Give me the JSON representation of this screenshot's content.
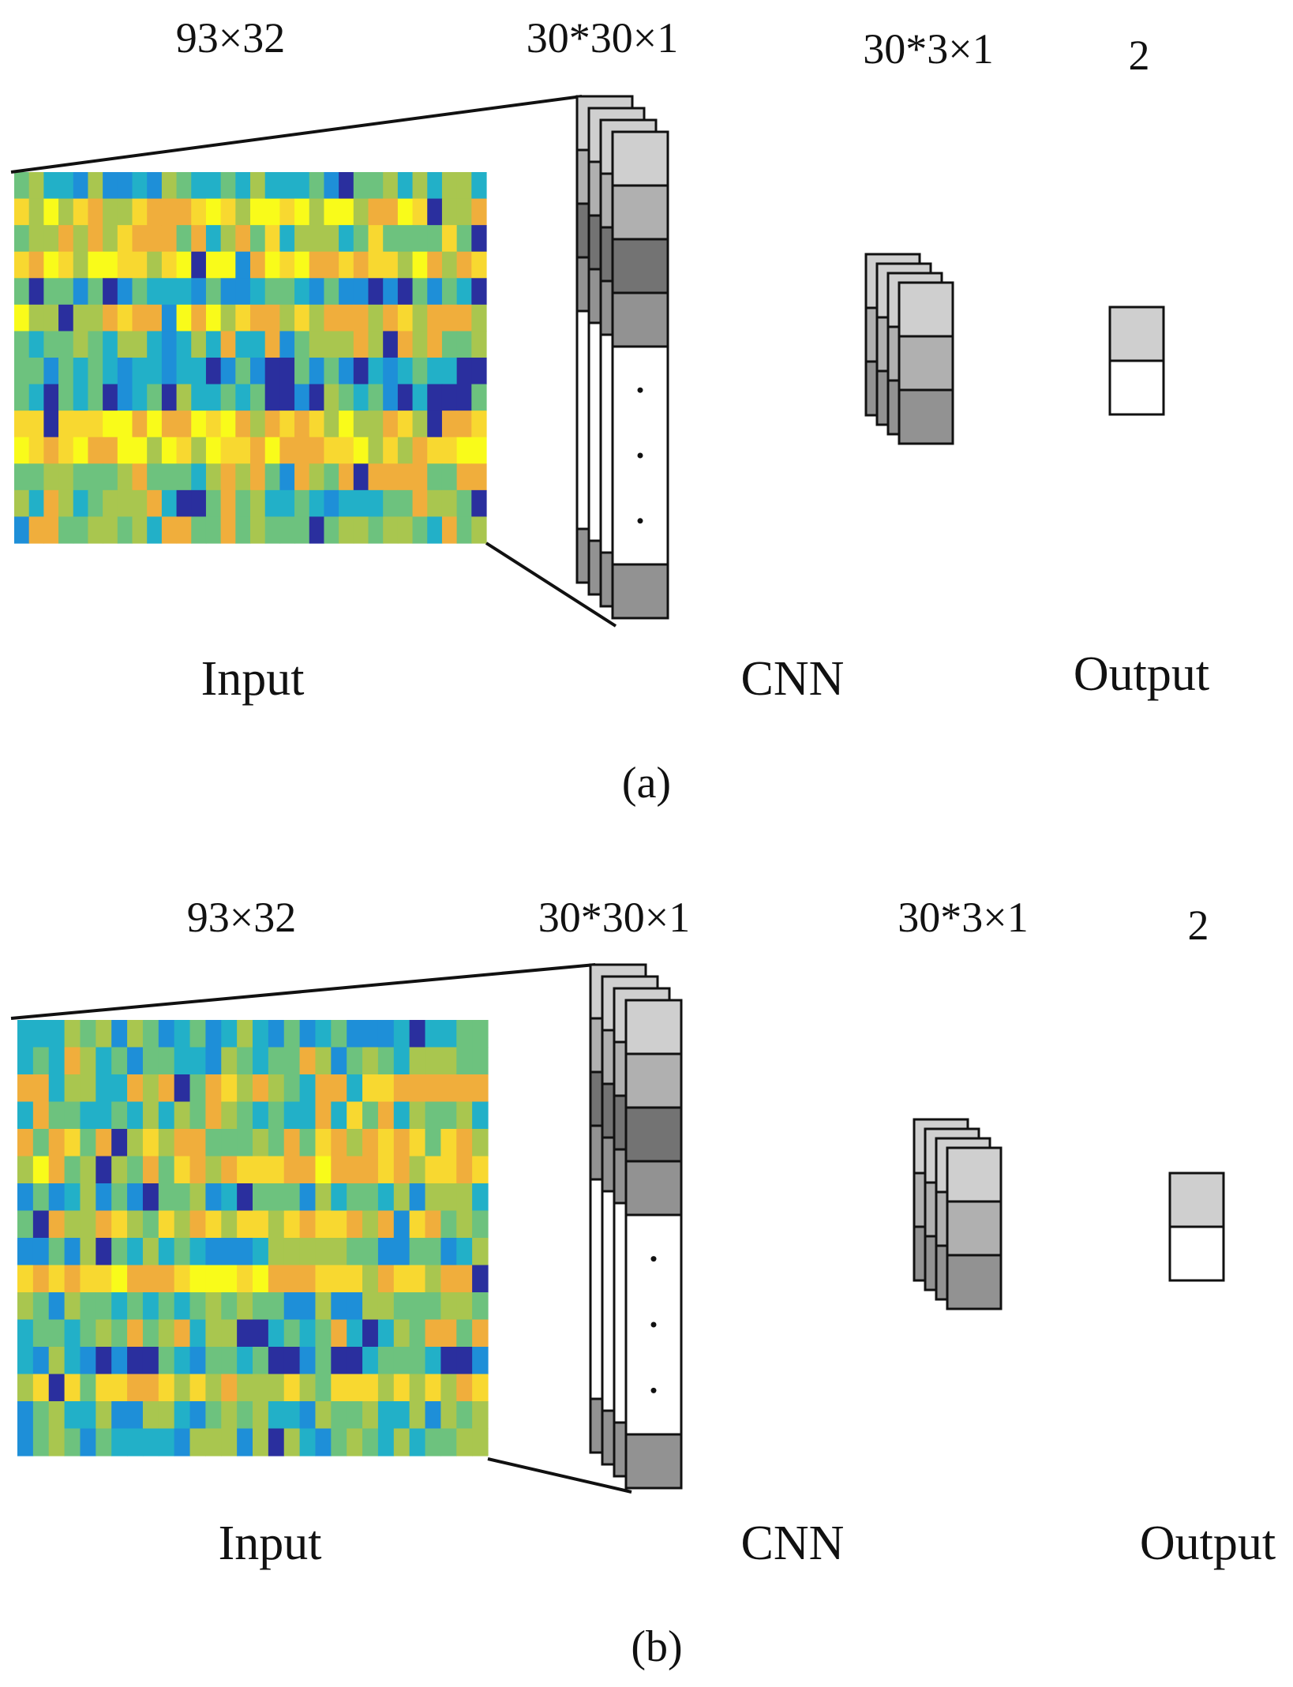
{
  "colors": {
    "heatmap_stops": [
      "#2A2F9E",
      "#1E8FD8",
      "#22B0C8",
      "#6DC27E",
      "#A9C64F",
      "#F0AE3C",
      "#F8D830",
      "#F9FB1A"
    ],
    "filter_fill": "#ffffff",
    "shade_light": "#CFCFCF",
    "shade_mid": "#B0B0B0",
    "shade_dark": "#737373",
    "shade_darker": "#929292",
    "stroke": "#111111"
  },
  "panels": [
    {
      "id": "a",
      "caption": "(a)",
      "dims": {
        "input": "93×32",
        "conv": "30*30×1",
        "fc": "30*3×1",
        "output": "2"
      },
      "labels": {
        "input": "Input",
        "cnn": "CNN",
        "output": "Output"
      },
      "heatmap": {
        "rows": 14,
        "cols": 32,
        "seed": 7
      }
    },
    {
      "id": "b",
      "caption": "(b)",
      "dims": {
        "input": "93×32",
        "conv": "30*30×1",
        "fc": "30*3×1",
        "output": "2"
      },
      "labels": {
        "input": "Input",
        "cnn": "CNN",
        "output": "Output"
      },
      "heatmap": {
        "rows": 16,
        "cols": 30,
        "seed": 23
      }
    }
  ]
}
